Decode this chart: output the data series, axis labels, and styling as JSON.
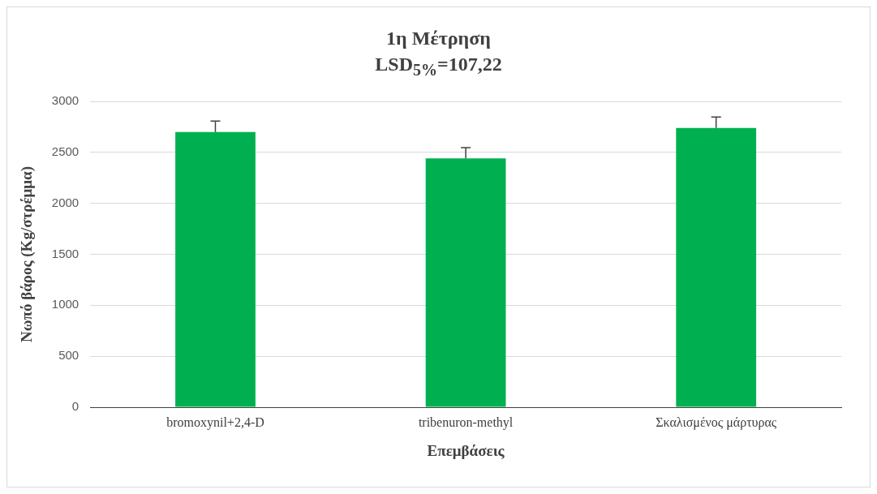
{
  "chart_data": {
    "type": "bar",
    "title": "1η Μέτρηση",
    "subtitle": "LSD$_{5%}$=107,22",
    "xlabel": "Επεμβάσεις",
    "ylabel": "Νωπό βάρος (Kg/στρέμμα)",
    "categories": [
      "bromoxynil+2,4-D",
      "tribenuron-methyl",
      "Σκαλισμένος μάρτυρας"
    ],
    "values": [
      2700,
      2440,
      2740
    ],
    "color": "#00b050",
    "errors": [
      [
        2700,
        2807
      ],
      [
        2440,
        2547
      ],
      [
        2740,
        2847
      ]
    ],
    "ylim": [
      0,
      3000
    ],
    "yticks": [
      0,
      500,
      1000,
      1500,
      2000,
      2500,
      3000
    ],
    "grid": "y",
    "legend": false
  }
}
